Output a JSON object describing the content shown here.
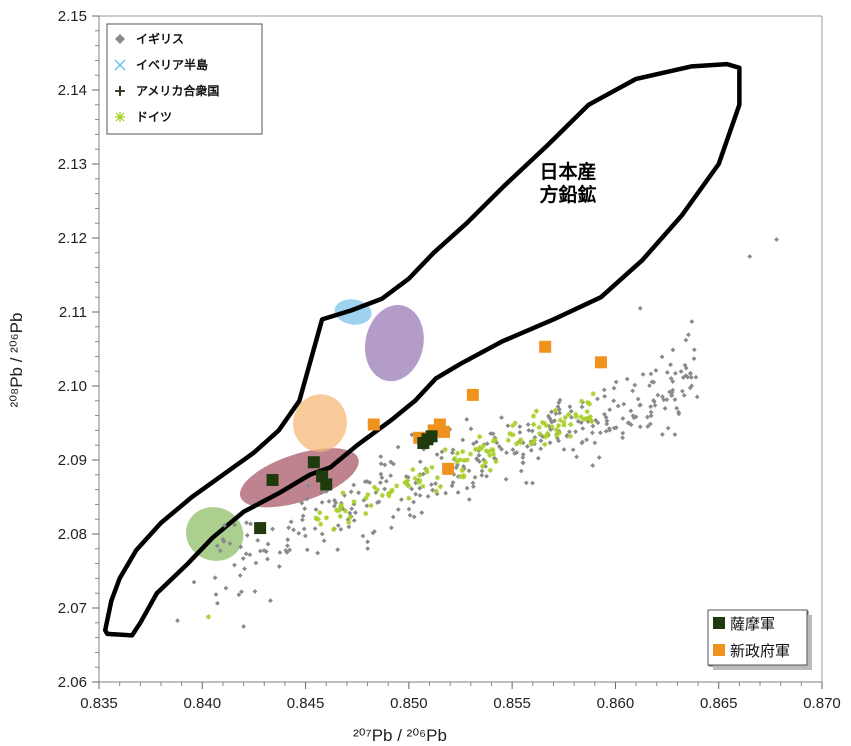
{
  "chart_data": {
    "type": "scatter",
    "x_axis": {
      "label": "²⁰⁷Pb / ²⁰⁶Pb",
      "range": [
        0.835,
        0.87
      ],
      "ticks": [
        "0.835",
        "0.840",
        "0.845",
        "0.850",
        "0.855",
        "0.860",
        "0.865",
        "0.870"
      ]
    },
    "y_axis": {
      "label": "²⁰⁸Pb / ²⁰⁶Pb",
      "range": [
        2.06,
        2.15
      ],
      "ticks": [
        "2.06",
        "2.07",
        "2.08",
        "2.09",
        "2.10",
        "2.11",
        "2.12",
        "2.13",
        "2.14",
        "2.15"
      ]
    },
    "legend_top_left": [
      {
        "label": "イギリス",
        "marker": "diamond",
        "color": "#8a8a8a"
      },
      {
        "label": "イベリア半島",
        "marker": "x",
        "color": "#6fc3ea"
      },
      {
        "label": "アメリカ合衆国",
        "marker": "plus",
        "color": "#1f2a10"
      },
      {
        "label": "ドイツ",
        "marker": "asterisk",
        "color": "#a8cf2a"
      }
    ],
    "legend_bottom_right": [
      {
        "label": "薩摩軍",
        "marker": "square",
        "color": "#1f3a0d"
      },
      {
        "label": "新政府軍",
        "marker": "square",
        "color": "#f0921e"
      }
    ],
    "region_label": [
      "日本産",
      "方鉛鉱"
    ],
    "japan_outline": [
      [
        0.8353,
        2.067
      ],
      [
        0.8354,
        2.0665
      ],
      [
        0.8366,
        2.0663
      ],
      [
        0.837,
        2.068
      ],
      [
        0.8378,
        2.072
      ],
      [
        0.8393,
        2.076
      ],
      [
        0.8405,
        2.0795
      ],
      [
        0.842,
        2.083
      ],
      [
        0.8437,
        2.0855
      ],
      [
        0.8452,
        2.088
      ],
      [
        0.8462,
        2.089
      ],
      [
        0.8475,
        2.092
      ],
      [
        0.8492,
        2.0955
      ],
      [
        0.8503,
        2.098
      ],
      [
        0.8513,
        2.101
      ],
      [
        0.8525,
        2.103
      ],
      [
        0.8545,
        2.106
      ],
      [
        0.857,
        2.109
      ],
      [
        0.8593,
        2.112
      ],
      [
        0.8613,
        2.117
      ],
      [
        0.8632,
        2.123
      ],
      [
        0.865,
        2.13
      ],
      [
        0.866,
        2.138
      ],
      [
        0.866,
        2.143
      ],
      [
        0.8654,
        2.1435
      ],
      [
        0.8637,
        2.1432
      ],
      [
        0.861,
        2.1415
      ],
      [
        0.8587,
        2.138
      ],
      [
        0.8567,
        2.1325
      ],
      [
        0.8546,
        2.127
      ],
      [
        0.8528,
        2.122
      ],
      [
        0.8512,
        2.118
      ],
      [
        0.85,
        2.1145
      ],
      [
        0.8487,
        2.1118
      ],
      [
        0.8472,
        2.1102
      ],
      [
        0.8458,
        2.109
      ],
      [
        0.8452,
        2.103
      ],
      [
        0.8447,
        2.098
      ],
      [
        0.8437,
        2.094
      ],
      [
        0.8425,
        2.091
      ],
      [
        0.841,
        2.088
      ],
      [
        0.8395,
        2.085
      ],
      [
        0.838,
        2.0815
      ],
      [
        0.8368,
        2.0778
      ],
      [
        0.836,
        2.074
      ],
      [
        0.8356,
        2.071
      ]
    ],
    "fields": [
      {
        "cx": 0.8406,
        "cy": 2.08,
        "rx": 0.0014,
        "ry": 0.0036,
        "angle": 20,
        "color": "#8fbf6a"
      },
      {
        "cx": 0.8447,
        "cy": 2.0876,
        "rx": 0.003,
        "ry": 0.0032,
        "angle": -18,
        "color": "#a85a68"
      },
      {
        "cx": 0.8457,
        "cy": 2.095,
        "rx": 0.0013,
        "ry": 0.0039,
        "angle": 10,
        "color": "#f5b878"
      },
      {
        "cx": 0.8473,
        "cy": 2.11,
        "rx": 0.0009,
        "ry": 0.0017,
        "angle": 8,
        "color": "#7fc3ea"
      },
      {
        "cx": 0.8493,
        "cy": 2.1058,
        "rx": 0.0014,
        "ry": 0.0052,
        "angle": 12,
        "color": "#9b7bb6"
      }
    ],
    "satsuma": [
      [
        0.8428,
        2.0808
      ],
      [
        0.8434,
        2.0873
      ],
      [
        0.8454,
        2.0897
      ],
      [
        0.8458,
        2.0878
      ],
      [
        0.846,
        2.0867
      ],
      [
        0.8507,
        2.0923
      ],
      [
        0.8509,
        2.0928
      ],
      [
        0.8511,
        2.0932
      ]
    ],
    "government": [
      [
        0.8483,
        2.0948
      ],
      [
        0.8505,
        2.093
      ],
      [
        0.8512,
        2.094
      ],
      [
        0.8515,
        2.0948
      ],
      [
        0.8517,
        2.0938
      ],
      [
        0.8519,
        2.0888
      ],
      [
        0.8531,
        2.0988
      ],
      [
        0.8566,
        2.1053
      ],
      [
        0.8593,
        2.1032
      ]
    ],
    "britain_band": {
      "count": 360,
      "x_range": [
        0.8405,
        0.864
      ],
      "center_start": 2.076,
      "slope": 1.08,
      "spread": 0.0048
    },
    "germany_band": {
      "count": 130,
      "x_range": [
        0.8455,
        0.859
      ],
      "center_start": 2.0815,
      "slope": 1.15,
      "spread": 0.0022
    },
    "britain_extra": [
      [
        0.8388,
        2.0683
      ],
      [
        0.8396,
        2.0735
      ],
      [
        0.841,
        2.0793
      ],
      [
        0.842,
        2.0675
      ],
      [
        0.8433,
        2.071
      ],
      [
        0.8419,
        2.0722
      ],
      [
        0.8665,
        2.1175
      ],
      [
        0.8678,
        2.1198
      ],
      [
        0.8637,
        2.1087
      ],
      [
        0.8612,
        2.1105
      ]
    ],
    "germany_extra": [
      [
        0.8403,
        2.0688
      ]
    ]
  }
}
